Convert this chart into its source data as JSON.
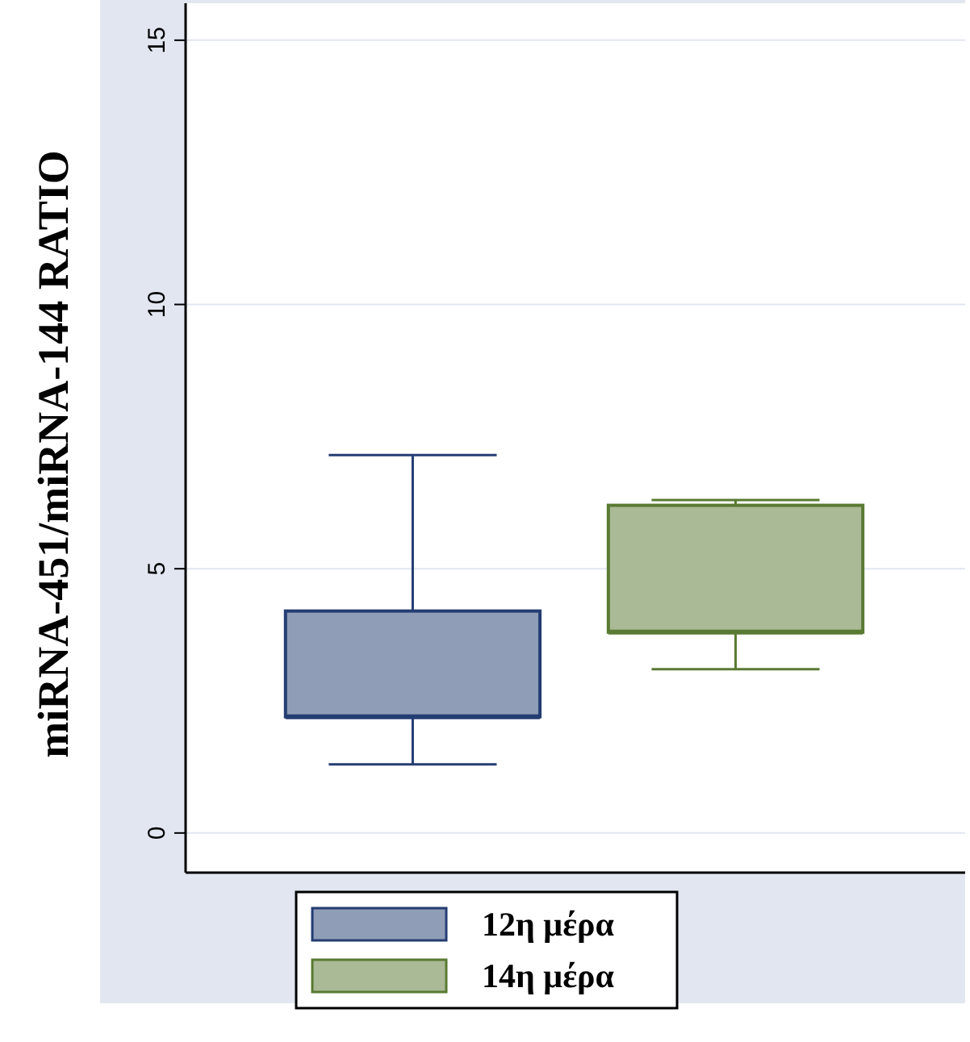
{
  "chart_data": {
    "type": "box",
    "ylabel": "miRNA-451/miRNA-144 RATIO",
    "categories": [
      null
    ],
    "ylim": [
      -0.75,
      15.7
    ],
    "yticks": [
      0,
      5,
      10,
      15
    ],
    "grid": "y",
    "legend": "bottom",
    "series": [
      {
        "name": "12η μέρα",
        "color": "#8f9db7",
        "boxes": [
          {
            "low": 1.3,
            "q1": 2.2,
            "median": 2.2,
            "q3": 4.2,
            "high": 7.15
          }
        ]
      },
      {
        "name": "14η μέρα",
        "color": "#aab996",
        "boxes": [
          {
            "low": 3.1,
            "q1": 3.8,
            "median": 3.8,
            "q3": 6.2,
            "high": 6.3
          }
        ]
      }
    ]
  }
}
